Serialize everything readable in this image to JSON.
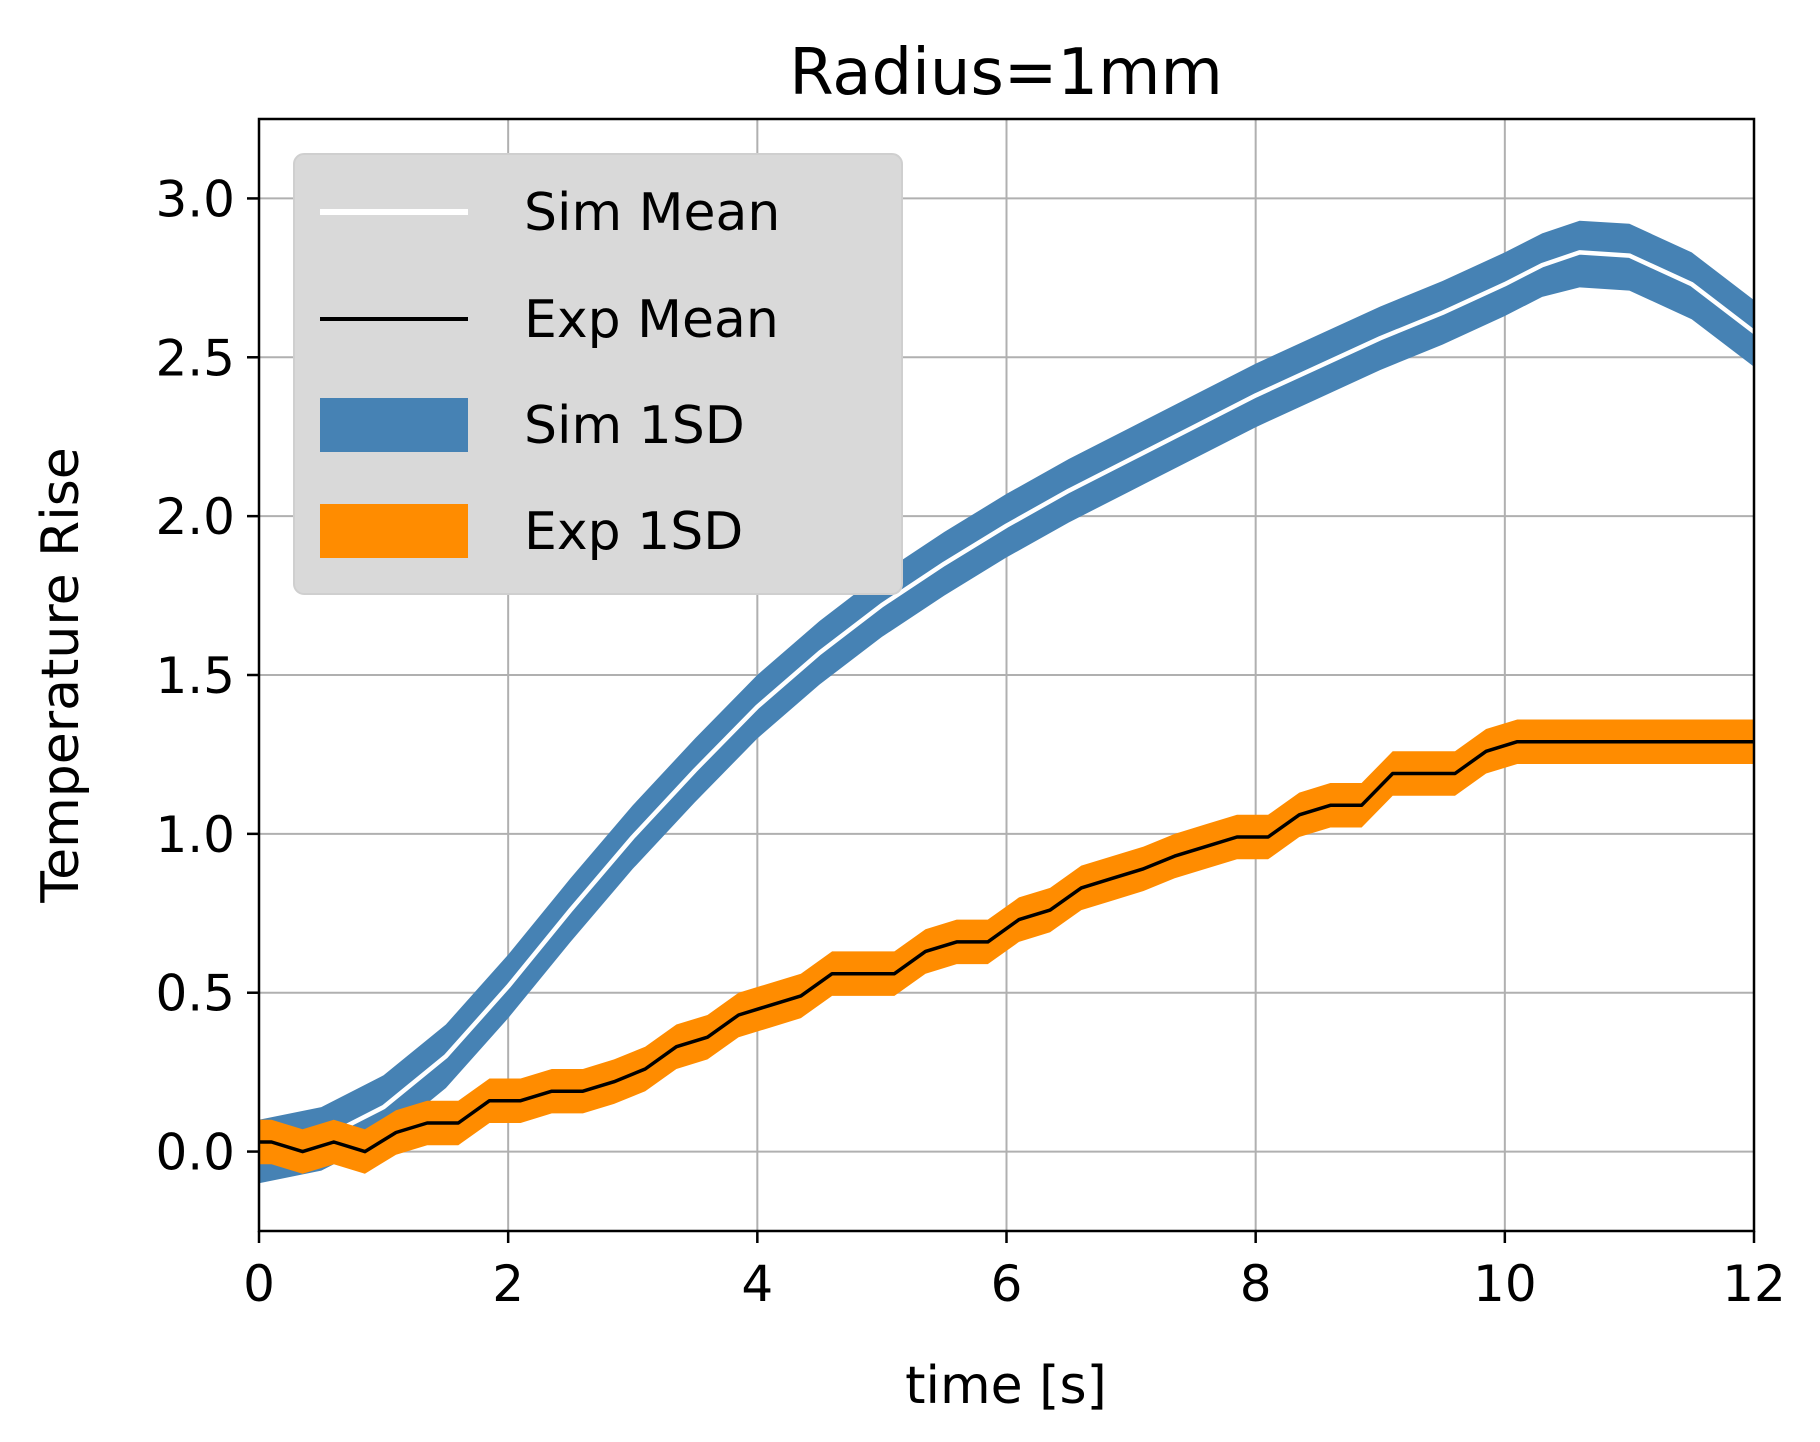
{
  "chart_data": {
    "type": "line",
    "title": "Radius=1mm",
    "xlabel": "time [s]",
    "ylabel": "Temperature Rise",
    "xlim": [
      0,
      12
    ],
    "ylim": [
      -0.25,
      3.25
    ],
    "xticks": [
      0,
      2,
      4,
      6,
      8,
      10,
      12
    ],
    "xtick_labels": [
      "0",
      "2",
      "4",
      "6",
      "8",
      "10",
      "12"
    ],
    "yticks": [
      0.0,
      0.5,
      1.0,
      1.5,
      2.0,
      2.5,
      3.0
    ],
    "ytick_labels": [
      "0.0",
      "0.5",
      "1.0",
      "1.5",
      "2.0",
      "2.5",
      "3.0"
    ],
    "grid": true,
    "legend_position": "top-left",
    "legend": [
      {
        "label": "Sim Mean",
        "kind": "line",
        "color": "#ffffff"
      },
      {
        "label": "Exp Mean",
        "kind": "line",
        "color": "#000000"
      },
      {
        "label": "Sim 1SD",
        "kind": "band",
        "color": "#4682b4"
      },
      {
        "label": "Exp 1SD",
        "kind": "band",
        "color": "#ff8c00"
      }
    ],
    "series": [
      {
        "name": "Sim Mean",
        "kind": "line",
        "color": "#ffffff",
        "x": [
          0,
          0.5,
          1,
          1.5,
          2,
          2.5,
          3,
          3.5,
          4,
          4.5,
          5,
          5.5,
          6,
          6.5,
          7,
          7.5,
          8,
          8.5,
          9,
          9.5,
          10,
          10.3,
          10.6,
          11,
          11.5,
          12
        ],
        "y": [
          0.0,
          0.04,
          0.14,
          0.3,
          0.52,
          0.76,
          0.99,
          1.2,
          1.4,
          1.57,
          1.72,
          1.85,
          1.97,
          2.08,
          2.18,
          2.28,
          2.38,
          2.47,
          2.56,
          2.64,
          2.73,
          2.79,
          2.83,
          2.82,
          2.73,
          2.58
        ]
      },
      {
        "name": "Sim 1SD",
        "kind": "band",
        "color": "#4682b4",
        "x": [
          0,
          0.5,
          1,
          1.5,
          2,
          2.5,
          3,
          3.5,
          4,
          4.5,
          5,
          5.5,
          6,
          6.5,
          7,
          7.5,
          8,
          8.5,
          9,
          9.5,
          10,
          10.3,
          10.6,
          11,
          11.5,
          12
        ],
        "lower": [
          -0.1,
          -0.06,
          0.04,
          0.2,
          0.42,
          0.66,
          0.89,
          1.1,
          1.3,
          1.47,
          1.62,
          1.75,
          1.87,
          1.98,
          2.08,
          2.18,
          2.28,
          2.37,
          2.46,
          2.54,
          2.63,
          2.69,
          2.72,
          2.71,
          2.62,
          2.47
        ],
        "upper": [
          0.1,
          0.14,
          0.24,
          0.4,
          0.62,
          0.86,
          1.09,
          1.3,
          1.5,
          1.67,
          1.82,
          1.95,
          2.07,
          2.18,
          2.28,
          2.38,
          2.48,
          2.57,
          2.66,
          2.74,
          2.83,
          2.89,
          2.93,
          2.92,
          2.83,
          2.68
        ]
      },
      {
        "name": "Exp Mean",
        "kind": "line",
        "color": "#000000",
        "x": [
          0,
          0.1,
          0.35,
          0.6,
          0.85,
          1.1,
          1.35,
          1.6,
          1.85,
          2.1,
          2.35,
          2.6,
          2.85,
          3.1,
          3.35,
          3.6,
          3.85,
          4.1,
          4.35,
          4.6,
          4.85,
          5.1,
          5.35,
          5.6,
          5.85,
          6.1,
          6.35,
          6.6,
          6.85,
          7.1,
          7.35,
          7.6,
          7.85,
          8.1,
          8.35,
          8.6,
          8.85,
          9.1,
          9.35,
          9.6,
          9.85,
          10.1,
          12
        ],
        "y": [
          0.03,
          0.03,
          0.0,
          0.03,
          0.0,
          0.06,
          0.09,
          0.09,
          0.16,
          0.16,
          0.19,
          0.19,
          0.22,
          0.26,
          0.33,
          0.36,
          0.43,
          0.46,
          0.49,
          0.56,
          0.56,
          0.56,
          0.63,
          0.66,
          0.66,
          0.73,
          0.76,
          0.83,
          0.86,
          0.89,
          0.93,
          0.96,
          0.99,
          0.99,
          1.06,
          1.09,
          1.09,
          1.19,
          1.19,
          1.19,
          1.26,
          1.29,
          1.29
        ]
      },
      {
        "name": "Exp 1SD",
        "kind": "band",
        "color": "#ff8c00",
        "x": [
          0,
          0.1,
          0.35,
          0.6,
          0.85,
          1.1,
          1.35,
          1.6,
          1.85,
          2.1,
          2.35,
          2.6,
          2.85,
          3.1,
          3.35,
          3.6,
          3.85,
          4.1,
          4.35,
          4.6,
          4.85,
          5.1,
          5.35,
          5.6,
          5.85,
          6.1,
          6.35,
          6.6,
          6.85,
          7.1,
          7.35,
          7.6,
          7.85,
          8.1,
          8.35,
          8.6,
          8.85,
          9.1,
          9.35,
          9.6,
          9.85,
          10.1,
          12
        ],
        "lower": [
          -0.04,
          -0.04,
          -0.07,
          -0.04,
          -0.07,
          -0.01,
          0.02,
          0.02,
          0.09,
          0.09,
          0.12,
          0.12,
          0.15,
          0.19,
          0.26,
          0.29,
          0.36,
          0.39,
          0.42,
          0.49,
          0.49,
          0.49,
          0.56,
          0.59,
          0.59,
          0.66,
          0.69,
          0.76,
          0.79,
          0.82,
          0.86,
          0.89,
          0.92,
          0.92,
          0.99,
          1.02,
          1.02,
          1.12,
          1.12,
          1.12,
          1.19,
          1.22,
          1.22
        ],
        "upper": [
          0.1,
          0.1,
          0.07,
          0.1,
          0.07,
          0.13,
          0.16,
          0.16,
          0.23,
          0.23,
          0.26,
          0.26,
          0.29,
          0.33,
          0.4,
          0.43,
          0.5,
          0.53,
          0.56,
          0.63,
          0.63,
          0.63,
          0.7,
          0.73,
          0.73,
          0.8,
          0.83,
          0.9,
          0.93,
          0.96,
          1.0,
          1.03,
          1.06,
          1.06,
          1.13,
          1.16,
          1.16,
          1.26,
          1.26,
          1.26,
          1.33,
          1.36,
          1.36
        ]
      }
    ]
  }
}
